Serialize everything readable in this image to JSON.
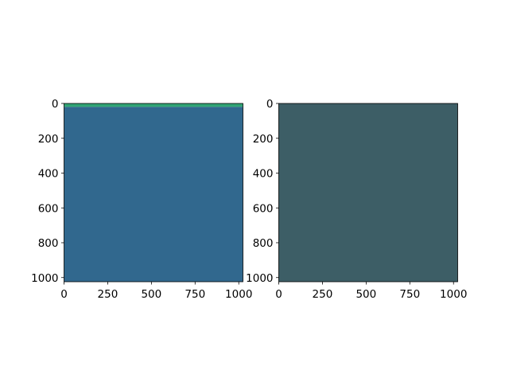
{
  "chart_data": [
    {
      "type": "heatmap",
      "xlim": [
        0,
        1024
      ],
      "ylim": [
        1024,
        0
      ],
      "xticks": [
        "0",
        "250",
        "500",
        "750",
        "1000"
      ],
      "yticks": [
        "0",
        "200",
        "400",
        "600",
        "800",
        "1000"
      ],
      "regions": [
        {
          "rows": [
            0,
            20
          ],
          "color": "#31a475"
        },
        {
          "rows": [
            20,
            1024
          ],
          "color": "#31688e"
        }
      ]
    },
    {
      "type": "heatmap",
      "xlim": [
        0,
        1024
      ],
      "ylim": [
        1024,
        0
      ],
      "xticks": [
        "0",
        "250",
        "500",
        "750",
        "1000"
      ],
      "yticks": [
        "0",
        "200",
        "400",
        "600",
        "800",
        "1000"
      ],
      "regions": [
        {
          "rows": [
            0,
            1024
          ],
          "color": "#3d5e66"
        }
      ]
    }
  ]
}
